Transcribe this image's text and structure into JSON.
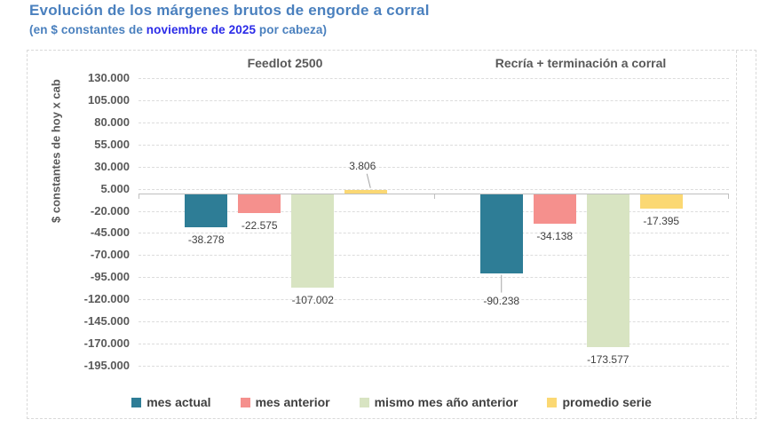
{
  "title": {
    "text": "Evolución de los márgenes brutos de engorde a corral",
    "color": "#4a80be"
  },
  "subtitle": {
    "prefix": "(en $ constantes de ",
    "highlight": "noviembre de 2025",
    "suffix": " por cabeza)",
    "color": "#4a80be",
    "highlight_color": "#2b2be8"
  },
  "chart_data": {
    "type": "bar",
    "groups": [
      "Feedlot 2500",
      "Recría + terminación a corral"
    ],
    "series": [
      {
        "name": "mes actual",
        "color": "#2e7d96",
        "values": [
          -38278,
          -90238
        ],
        "labels": [
          "-38.278",
          "-90.238"
        ]
      },
      {
        "name": "mes anterior",
        "color": "#f5908d",
        "values": [
          -22575,
          -34138
        ],
        "labels": [
          "-22.575",
          "-34.138"
        ]
      },
      {
        "name": "mismo mes año anterior",
        "color": "#d8e4c2",
        "values": [
          -107002,
          -173577
        ],
        "labels": [
          "-107.002",
          "-173.577"
        ]
      },
      {
        "name": "promedio serie",
        "color": "#fbd873",
        "values": [
          3806,
          -17395
        ],
        "labels": [
          "3.806",
          "-17.395"
        ]
      }
    ],
    "ylabel": "$ constantes de hoy x cab",
    "ylim": [
      -195000,
      130000
    ],
    "ytick_step": 25000,
    "ytick_labels": [
      "130.000",
      "105.000",
      "80.000",
      "55.000",
      "30.000",
      "5.000",
      "-20.000",
      "-45.000",
      "-70.000",
      "-95.000",
      "-120.000",
      "-145.000",
      "-170.000",
      "-195.000"
    ],
    "grid": "horizontal-dashed",
    "legend_position": "bottom",
    "label_leaders": [
      {
        "series": 3,
        "group": 0,
        "type": "diagonal"
      },
      {
        "series": 0,
        "group": 1,
        "type": "vertical"
      }
    ],
    "colors": {
      "gridline": "#dcdcdc",
      "zero_axis": "#bfbfbf",
      "tick_label": "#595959",
      "data_label": "#404040",
      "leader_line": "#a6a6a6"
    }
  }
}
